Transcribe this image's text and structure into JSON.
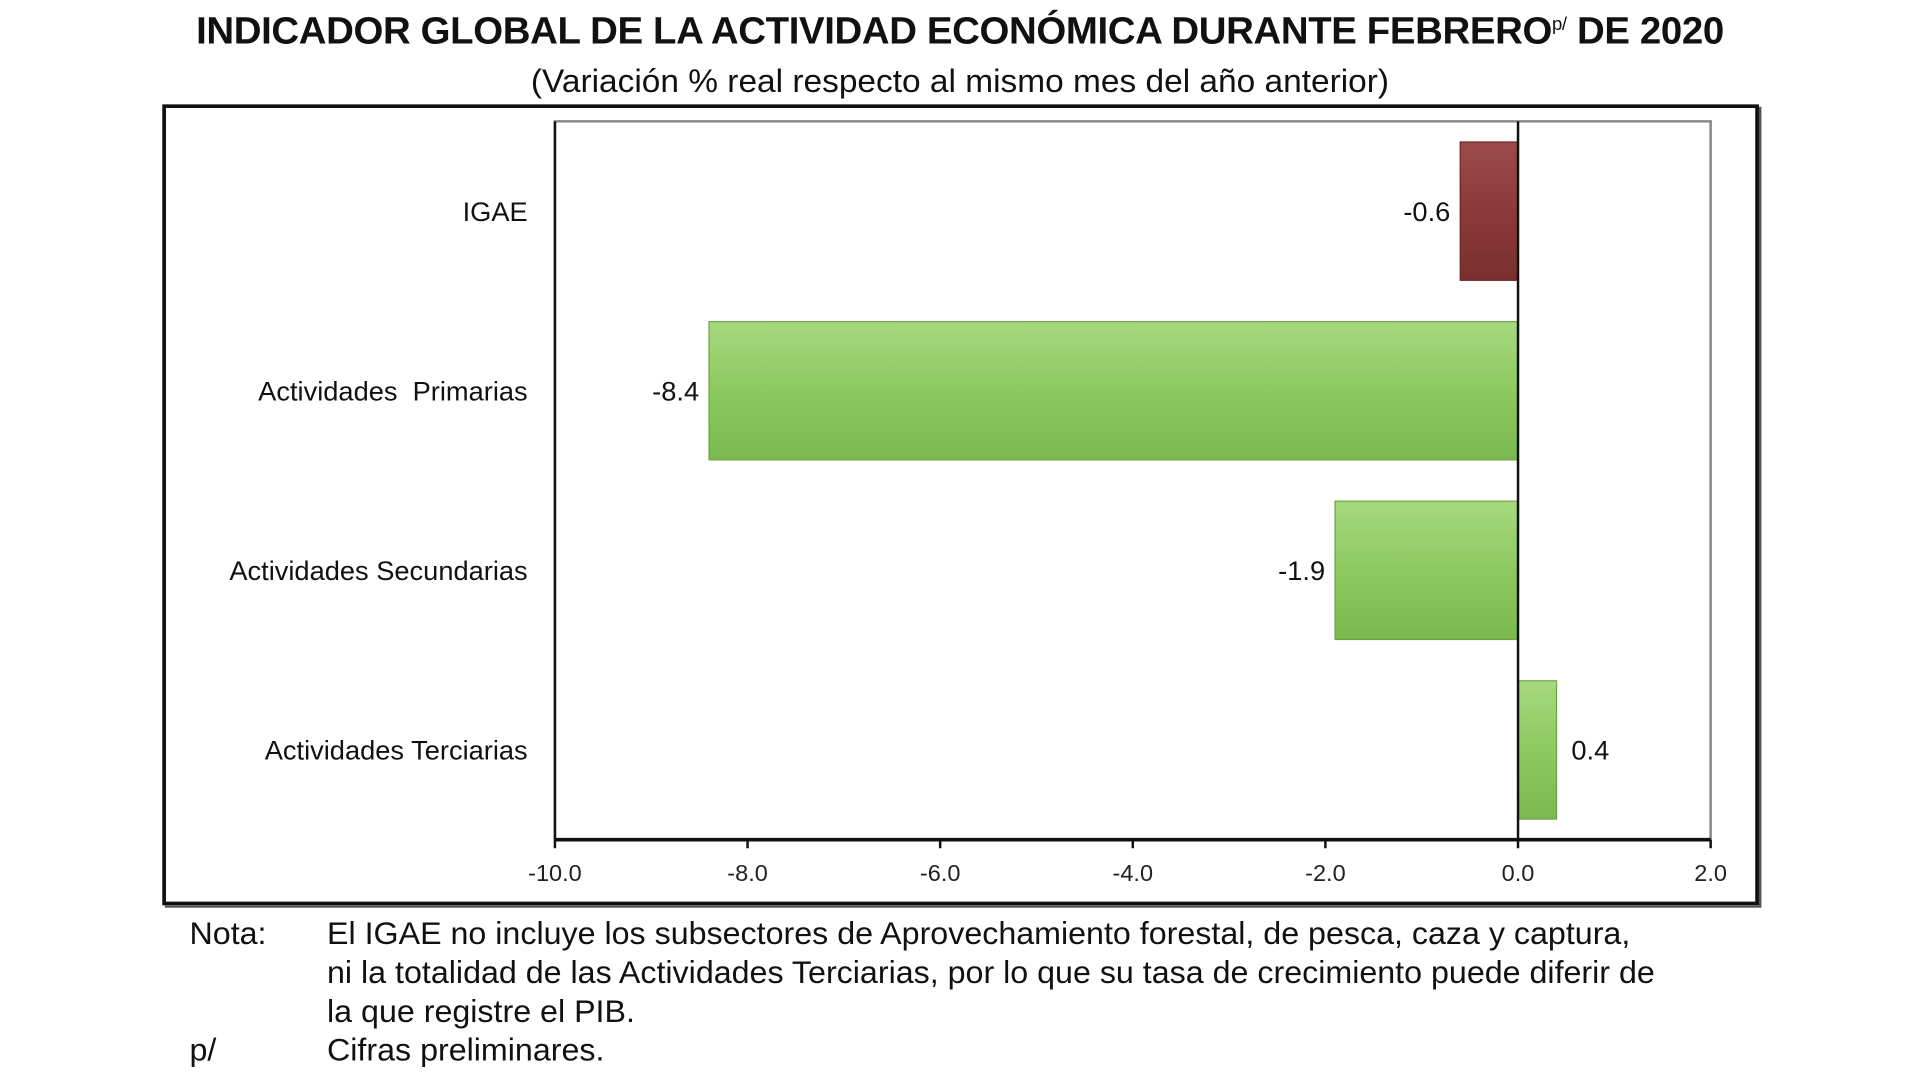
{
  "chart_data": {
    "type": "bar",
    "orientation": "horizontal",
    "title": "INDICADOR GLOBAL DE LA ACTIVIDAD ECONÓMICA DURANTE FEBRERO",
    "title_superscript": "p/",
    "title_suffix": "DE 2020",
    "subtitle": "(Variación % real respecto al mismo mes del año anterior)",
    "categories": [
      "IGAE",
      "Actividades  Primarias",
      "Actividades Secundarias",
      "Actividades Terciarias"
    ],
    "values": [
      -0.6,
      -8.4,
      -1.9,
      0.4
    ],
    "data_labels": [
      "-0.6",
      "-8.4",
      "-1.9",
      "0.4"
    ],
    "colors": [
      "#8b3a3a",
      "#8dc961",
      "#8dc961",
      "#8dc961"
    ],
    "xlim": [
      -10,
      2
    ],
    "xticks": [
      "-10.0",
      "-8.0",
      "-6.0",
      "-4.0",
      "-2.0",
      "0.0",
      "2.0"
    ],
    "grid": false,
    "legend": "none"
  },
  "notes": {
    "nota_label": "Nota:",
    "nota_lines": [
      "El IGAE no incluye los subsectores de Aprovechamiento forestal, de pesca, caza y captura,",
      "ni la totalidad de las Actividades Terciarias, por lo que su tasa de crecimiento puede diferir de",
      "la que registre el PIB."
    ],
    "p_label": "p/",
    "p_text": "Cifras preliminares."
  }
}
